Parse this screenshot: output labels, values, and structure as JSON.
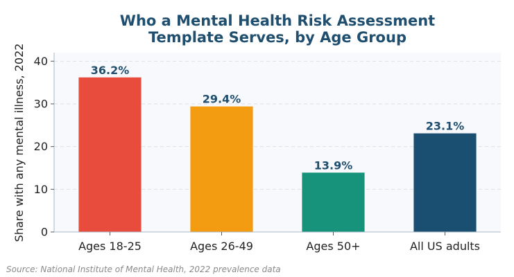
{
  "chart_data": {
    "type": "bar",
    "title": [
      "Who a Mental Health Risk Assessment",
      "Template Serves, by Age Group"
    ],
    "xlabel": "",
    "ylabel": "Share with any mental illness, 2022",
    "categories": [
      "Ages 18-25",
      "Ages 26-49",
      "Ages 50+",
      "All US adults"
    ],
    "values": [
      36.2,
      29.4,
      13.9,
      23.1
    ],
    "data_labels": [
      "36.2%",
      "29.4%",
      "13.9%",
      "23.1%"
    ],
    "colors": [
      "#e74c3c",
      "#f39c12",
      "#16937a",
      "#1b4f72"
    ],
    "ylim": [
      0,
      42
    ],
    "yticks": [
      0,
      10,
      20,
      30,
      40
    ],
    "grid": "horizontal-dashed",
    "legend": "none"
  },
  "source": "Source: National Institute of Mental Health, 2022 prevalence data"
}
